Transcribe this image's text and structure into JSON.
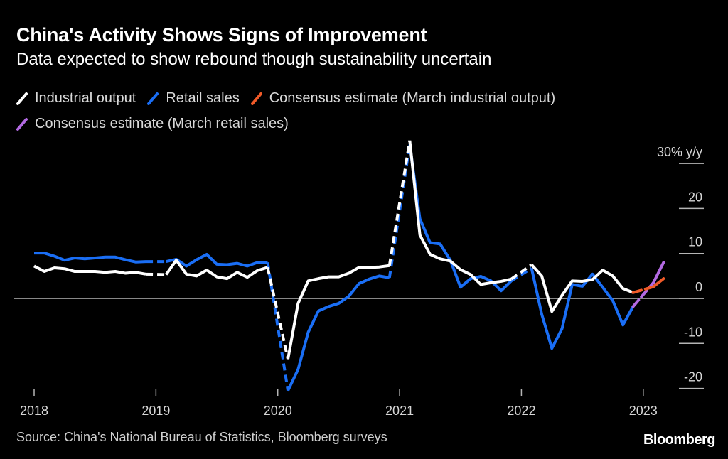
{
  "chart_data": {
    "type": "line",
    "title": "China's Activity Shows Signs of Improvement",
    "subtitle": "Data expected to show rebound though sustainability uncertain",
    "xlabel": "",
    "ylabel": "% y/y",
    "ylim": [
      -20,
      30
    ],
    "yticks": [
      {
        "value": 30,
        "label": "30% y/y"
      },
      {
        "value": 20,
        "label": "20"
      },
      {
        "value": 10,
        "label": "10"
      },
      {
        "value": 0,
        "label": "0"
      },
      {
        "value": -10,
        "label": "-10"
      },
      {
        "value": -20,
        "label": "-20"
      }
    ],
    "xticks": [
      "2018",
      "2019",
      "2020",
      "2021",
      "2022",
      "2023"
    ],
    "x_start": "2018-01",
    "grid": false,
    "legend_placement": "top",
    "series": [
      {
        "name": "Industrial output",
        "color": "#ffffff",
        "style": "solid",
        "note": "January/February gaps shown dashed",
        "values": [
          [
            0,
            7.2
          ],
          [
            1,
            6.0
          ],
          [
            2,
            6.8
          ],
          [
            3,
            6.6
          ],
          [
            4,
            6.0
          ],
          [
            5,
            6.0
          ],
          [
            6,
            6.0
          ],
          [
            7,
            5.8
          ],
          [
            8,
            6.0
          ],
          [
            9,
            5.6
          ],
          [
            10,
            5.8
          ],
          [
            11,
            5.4
          ],
          [
            13,
            5.3
          ],
          [
            14,
            8.5
          ],
          [
            15,
            5.4
          ],
          [
            16,
            5.0
          ],
          [
            17,
            6.3
          ],
          [
            18,
            4.8
          ],
          [
            19,
            4.4
          ],
          [
            20,
            5.8
          ],
          [
            21,
            4.7
          ],
          [
            22,
            6.2
          ],
          [
            23,
            6.9
          ],
          [
            25,
            -13.5
          ],
          [
            26,
            -1.1
          ],
          [
            27,
            3.9
          ],
          [
            28,
            4.4
          ],
          [
            29,
            4.8
          ],
          [
            30,
            4.8
          ],
          [
            31,
            5.6
          ],
          [
            32,
            6.9
          ],
          [
            33,
            6.9
          ],
          [
            34,
            7.0
          ],
          [
            35,
            7.3
          ],
          [
            37,
            35.1
          ],
          [
            38,
            14.1
          ],
          [
            39,
            9.8
          ],
          [
            40,
            8.8
          ],
          [
            41,
            8.3
          ],
          [
            42,
            6.4
          ],
          [
            43,
            5.3
          ],
          [
            44,
            3.1
          ],
          [
            45,
            3.5
          ],
          [
            46,
            3.8
          ],
          [
            47,
            4.3
          ],
          [
            49,
            7.5
          ],
          [
            50,
            5.0
          ],
          [
            51,
            -2.9
          ],
          [
            52,
            0.7
          ],
          [
            53,
            3.9
          ],
          [
            54,
            3.8
          ],
          [
            55,
            4.2
          ],
          [
            56,
            6.3
          ],
          [
            57,
            5.0
          ],
          [
            58,
            2.2
          ],
          [
            59,
            1.3
          ]
        ],
        "dashed_links": [
          [
            11,
            13
          ],
          [
            23,
            25
          ],
          [
            35,
            37
          ],
          [
            47,
            49
          ]
        ]
      },
      {
        "name": "Retail sales",
        "color": "#1a6ef5",
        "style": "solid",
        "note": "January/February gaps shown dashed",
        "values": [
          [
            0,
            10.1
          ],
          [
            1,
            10.1
          ],
          [
            2,
            9.4
          ],
          [
            3,
            8.5
          ],
          [
            4,
            9.0
          ],
          [
            5,
            8.8
          ],
          [
            6,
            9.0
          ],
          [
            7,
            9.2
          ],
          [
            8,
            9.2
          ],
          [
            9,
            8.6
          ],
          [
            10,
            8.1
          ],
          [
            11,
            8.2
          ],
          [
            13,
            8.2
          ],
          [
            14,
            8.7
          ],
          [
            15,
            7.2
          ],
          [
            16,
            8.6
          ],
          [
            17,
            9.8
          ],
          [
            18,
            7.6
          ],
          [
            19,
            7.5
          ],
          [
            20,
            7.8
          ],
          [
            21,
            7.2
          ],
          [
            22,
            8.0
          ],
          [
            23,
            8.0
          ],
          [
            25,
            -20.5
          ],
          [
            26,
            -15.8
          ],
          [
            27,
            -7.5
          ],
          [
            28,
            -2.8
          ],
          [
            29,
            -1.8
          ],
          [
            30,
            -1.1
          ],
          [
            31,
            0.5
          ],
          [
            32,
            3.3
          ],
          [
            33,
            4.3
          ],
          [
            34,
            5.0
          ],
          [
            35,
            4.6
          ],
          [
            37,
            34.2
          ],
          [
            38,
            17.7
          ],
          [
            39,
            12.4
          ],
          [
            40,
            12.1
          ],
          [
            41,
            8.5
          ],
          [
            42,
            2.5
          ],
          [
            43,
            4.4
          ],
          [
            44,
            4.9
          ],
          [
            45,
            3.9
          ],
          [
            46,
            1.7
          ],
          [
            47,
            3.9
          ],
          [
            49,
            6.7
          ],
          [
            50,
            -3.5
          ],
          [
            51,
            -11.1
          ],
          [
            52,
            -6.7
          ],
          [
            53,
            3.1
          ],
          [
            54,
            2.7
          ],
          [
            55,
            5.4
          ],
          [
            56,
            2.5
          ],
          [
            57,
            -0.5
          ],
          [
            58,
            -5.9
          ],
          [
            59,
            -1.8
          ]
        ],
        "dashed_links": [
          [
            11,
            13
          ],
          [
            23,
            25
          ],
          [
            35,
            37
          ],
          [
            47,
            49
          ]
        ]
      },
      {
        "name": "Consensus estimate (March industrial output)",
        "color": "#f05a28",
        "style": "dashed-then-solid",
        "values": [
          [
            59,
            1.3
          ],
          [
            61,
            2.6
          ],
          [
            62,
            4.4
          ]
        ]
      },
      {
        "name": "Consensus estimate (March retail sales)",
        "color": "#b36ae2",
        "style": "dashed-then-solid",
        "values": [
          [
            59,
            -1.8
          ],
          [
            61,
            3.5
          ],
          [
            62,
            8.0
          ]
        ]
      }
    ]
  },
  "legend": {
    "items": [
      {
        "label": "Industrial output",
        "color": "#ffffff"
      },
      {
        "label": "Retail sales",
        "color": "#1a6ef5"
      },
      {
        "label": "Consensus estimate (March industrial output)",
        "color": "#f05a28"
      },
      {
        "label": "Consensus estimate (March retail sales)",
        "color": "#b36ae2"
      }
    ]
  },
  "footer": {
    "source": "Source: China's National Bureau of Statistics, Bloomberg surveys",
    "brand": "Bloomberg"
  }
}
